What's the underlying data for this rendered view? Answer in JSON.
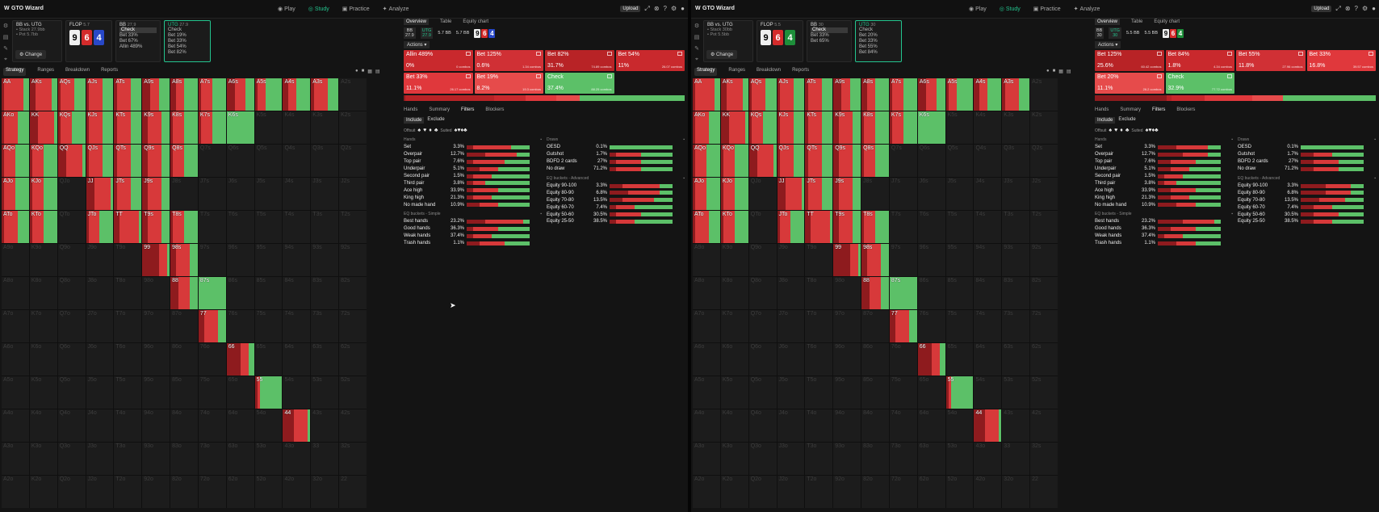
{
  "app": {
    "name": "GTO Wizard",
    "nav": [
      {
        "label": "Play"
      },
      {
        "label": "Study"
      },
      {
        "label": "Practice"
      },
      {
        "label": "Analyze"
      }
    ],
    "upload_label": "Upload",
    "accent": "#23c48e",
    "raise_color": "#d7393a",
    "check_color": "#5cc068"
  },
  "panes": [
    {
      "spot": {
        "hero": {
          "line1": "BB vs. UTG",
          "line2": "• Stack 27.9bb",
          "line3": "• Pot 5.7bb",
          "change": "Change"
        },
        "flop": {
          "label": "FLOP",
          "size": "5.7",
          "cards": [
            "9",
            "6",
            "4"
          ]
        },
        "bb": {
          "label": "BB",
          "size": "27.9",
          "actions": [
            "Check",
            "Bet 33%",
            "Bet 67%",
            "Allin 489%"
          ]
        },
        "utg": {
          "label": "UTG",
          "size": "27.9",
          "actions": [
            "Check",
            "Bet 19%",
            "Bet 33%",
            "Bet 54%",
            "Bet 82%"
          ]
        }
      },
      "subtabs": [
        "Strategy",
        "Ranges",
        "Breakdown",
        "Reports"
      ],
      "right": {
        "tabs": [
          "Overview",
          "Table",
          "Equity chart"
        ],
        "info": {
          "pos1": "BB",
          "stack1": "27.9",
          "pos2": "UTG",
          "stack2": "27.9",
          "pot": "5.7 BB",
          "pot_odds": "5.7 BB"
        },
        "actions_label": "Actions",
        "boxes": [
          {
            "title": "Allin 489%",
            "pct": "0%",
            "combos": "0 combos",
            "color": "#c9292d"
          },
          {
            "title": "Bet 125%",
            "pct": "0.6%",
            "combos": "1.34 combos",
            "color": "#d03035"
          },
          {
            "title": "Bet 82%",
            "pct": "31.7%",
            "combos": "74.89 combos",
            "color": "#b82326"
          },
          {
            "title": "Bet 54%",
            "pct": "11%",
            "combos": "26.07 combos",
            "color": "#c9292d"
          },
          {
            "title": "Bet 33%",
            "pct": "11.1%",
            "combos": "26.17 combos",
            "color": "#e0383c"
          },
          {
            "title": "Bet 19%",
            "pct": "8.2%",
            "combos": "19.3 combos",
            "color": "#e64b4b"
          },
          {
            "title": "Check",
            "pct": "37.4%",
            "combos": "88.25 combos",
            "color": "#5cc068"
          }
        ],
        "strategy_bar": [
          0.006,
          0.317,
          0.11,
          0.111,
          0.082,
          0.374
        ],
        "filter_tabs": [
          "Hands",
          "Summary",
          "Filters",
          "Blockers"
        ],
        "include": [
          "Include",
          "Exclude"
        ],
        "suit_labels": [
          "Offsuit",
          "Suited"
        ],
        "hands_title": "Hands",
        "hands": [
          {
            "name": "Set",
            "val": "3.3%",
            "mix": [
              0.1,
              0.6,
              0.3
            ]
          },
          {
            "name": "Overpair",
            "val": "12.7%",
            "mix": [
              0.3,
              0.5,
              0.2
            ]
          },
          {
            "name": "Top pair",
            "val": "7.6%",
            "mix": [
              0.1,
              0.5,
              0.4
            ]
          },
          {
            "name": "Underpair",
            "val": "5.1%",
            "mix": [
              0.2,
              0.3,
              0.5
            ]
          },
          {
            "name": "Second pair",
            "val": "1.5%",
            "mix": [
              0.1,
              0.3,
              0.6
            ]
          },
          {
            "name": "Third pair",
            "val": "3.8%",
            "mix": [
              0.1,
              0.2,
              0.7
            ]
          },
          {
            "name": "Ace high",
            "val": "33.9%",
            "mix": [
              0.1,
              0.4,
              0.5
            ]
          },
          {
            "name": "King high",
            "val": "21.3%",
            "mix": [
              0.1,
              0.3,
              0.6
            ]
          },
          {
            "name": "No made hand",
            "val": "10.9%",
            "mix": [
              0.2,
              0.3,
              0.5
            ]
          }
        ],
        "eq_simple_title": "EQ buckets - Simple",
        "eq_simple": [
          {
            "name": "Best hands",
            "val": "23.2%",
            "mix": [
              0.3,
              0.6,
              0.1
            ]
          },
          {
            "name": "Good hands",
            "val": "36.3%",
            "mix": [
              0.1,
              0.4,
              0.5
            ]
          },
          {
            "name": "Weak hands",
            "val": "37.4%",
            "mix": [
              0.1,
              0.3,
              0.6
            ]
          },
          {
            "name": "Trash hands",
            "val": "1.1%",
            "mix": [
              0.2,
              0.4,
              0.4
            ]
          }
        ],
        "draws_title": "Draws",
        "draws": [
          {
            "name": "OESD",
            "val": "0.1%",
            "mix": [
              0.0,
              0.0,
              1.0
            ]
          },
          {
            "name": "Gutshot",
            "val": "1.7%",
            "mix": [
              0.1,
              0.4,
              0.5
            ]
          },
          {
            "name": "BDFD 2 cards",
            "val": "27%",
            "mix": [
              0.1,
              0.4,
              0.5
            ]
          },
          {
            "name": "No draw",
            "val": "71.2%",
            "mix": [
              0.1,
              0.4,
              0.5
            ]
          }
        ],
        "eq_adv_title": "EQ buckets - Advanced",
        "eq_adv": [
          {
            "name": "Equity 90-100",
            "val": "3.3%",
            "mix": [
              0.2,
              0.6,
              0.2
            ]
          },
          {
            "name": "Equity 80-90",
            "val": "6.8%",
            "mix": [
              0.3,
              0.5,
              0.2
            ]
          },
          {
            "name": "Equity 70-80",
            "val": "13.5%",
            "mix": [
              0.2,
              0.5,
              0.3
            ]
          },
          {
            "name": "Equity 60-70",
            "val": "7.4%",
            "mix": [
              0.1,
              0.3,
              0.6
            ]
          },
          {
            "name": "Equity 50-60",
            "val": "30.5%",
            "mix": [
              0.1,
              0.4,
              0.5
            ]
          },
          {
            "name": "Equity 25-50",
            "val": "38.5%",
            "mix": [
              0.1,
              0.3,
              0.6
            ]
          }
        ]
      }
    },
    {
      "spot": {
        "hero": {
          "line1": "BB vs. UTG",
          "line2": "• Stack 30bb",
          "line3": "• Pot 5.5bb",
          "change": "Change"
        },
        "flop": {
          "label": "FLOP",
          "size": "5.5",
          "cards": [
            "9",
            "6",
            "4"
          ]
        },
        "bb": {
          "label": "BB",
          "size": "30",
          "actions": [
            "Check",
            "Bet 33%",
            "Bet 65%"
          ]
        },
        "utg": {
          "label": "UTG",
          "size": "30",
          "actions": [
            "Check",
            "Bet 20%",
            "Bet 33%",
            "Bet 55%",
            "Bet 84%"
          ]
        }
      },
      "subtabs": [
        "Strategy",
        "Ranges",
        "Breakdown",
        "Reports"
      ],
      "right": {
        "tabs": [
          "Overview",
          "Table",
          "Equity chart"
        ],
        "info": {
          "pos1": "BB",
          "stack1": "30",
          "pos2": "UTG",
          "stack2": "30",
          "pot": "5.5 BB",
          "pot_odds": "5.5 BB"
        },
        "actions_label": "Actions",
        "boxes": [
          {
            "title": "Bet 125%",
            "pct": "25.6%",
            "combos": "60.42 combos",
            "color": "#b82326"
          },
          {
            "title": "Bet 84%",
            "pct": "1.8%",
            "combos": "4.34 combos",
            "color": "#c9292d"
          },
          {
            "title": "Bet 55%",
            "pct": "11.8%",
            "combos": "27.96 combos",
            "color": "#d03035"
          },
          {
            "title": "Bet 33%",
            "pct": "16.8%",
            "combos": "39.57 combos",
            "color": "#e0383c"
          },
          {
            "title": "Bet 20%",
            "pct": "11.1%",
            "combos": "26.2 combos",
            "color": "#e64b4b"
          },
          {
            "title": "Check",
            "pct": "32.9%",
            "combos": "77.72 combos",
            "color": "#5cc068"
          }
        ],
        "strategy_bar": [
          0.256,
          0.018,
          0.118,
          0.168,
          0.111,
          0.329
        ],
        "filter_tabs": [
          "Hands",
          "Summary",
          "Filters",
          "Blockers"
        ],
        "include": [
          "Include",
          "Exclude"
        ],
        "suit_labels": [
          "Offsuit",
          "Suited"
        ],
        "hands_title": "Hands",
        "hands": [
          {
            "name": "Set",
            "val": "3.3%",
            "mix": [
              0.3,
              0.5,
              0.2
            ]
          },
          {
            "name": "Overpair",
            "val": "12.7%",
            "mix": [
              0.4,
              0.4,
              0.2
            ]
          },
          {
            "name": "Top pair",
            "val": "7.6%",
            "mix": [
              0.2,
              0.4,
              0.4
            ]
          },
          {
            "name": "Underpair",
            "val": "5.1%",
            "mix": [
              0.2,
              0.3,
              0.5
            ]
          },
          {
            "name": "Second pair",
            "val": "1.5%",
            "mix": [
              0.1,
              0.3,
              0.6
            ]
          },
          {
            "name": "Third pair",
            "val": "3.8%",
            "mix": [
              0.1,
              0.2,
              0.7
            ]
          },
          {
            "name": "Ace high",
            "val": "33.9%",
            "mix": [
              0.2,
              0.4,
              0.4
            ]
          },
          {
            "name": "King high",
            "val": "21.3%",
            "mix": [
              0.2,
              0.3,
              0.5
            ]
          },
          {
            "name": "No made hand",
            "val": "10.9%",
            "mix": [
              0.3,
              0.3,
              0.4
            ]
          }
        ],
        "eq_simple_title": "EQ buckets - Simple",
        "eq_simple": [
          {
            "name": "Best hands",
            "val": "23.2%",
            "mix": [
              0.4,
              0.5,
              0.1
            ]
          },
          {
            "name": "Good hands",
            "val": "36.3%",
            "mix": [
              0.2,
              0.4,
              0.4
            ]
          },
          {
            "name": "Weak hands",
            "val": "37.4%",
            "mix": [
              0.1,
              0.3,
              0.6
            ]
          },
          {
            "name": "Trash hands",
            "val": "1.1%",
            "mix": [
              0.3,
              0.3,
              0.4
            ]
          }
        ],
        "draws_title": "Draws",
        "draws": [
          {
            "name": "OESD",
            "val": "0.1%",
            "mix": [
              0.0,
              0.0,
              1.0
            ]
          },
          {
            "name": "Gutshot",
            "val": "1.7%",
            "mix": [
              0.2,
              0.3,
              0.5
            ]
          },
          {
            "name": "BDFD 2 cards",
            "val": "27%",
            "mix": [
              0.2,
              0.4,
              0.4
            ]
          },
          {
            "name": "No draw",
            "val": "71.2%",
            "mix": [
              0.2,
              0.4,
              0.4
            ]
          }
        ],
        "eq_adv_title": "EQ buckets - Advanced",
        "eq_adv": [
          {
            "name": "Equity 90-100",
            "val": "3.3%",
            "mix": [
              0.4,
              0.4,
              0.2
            ]
          },
          {
            "name": "Equity 80-90",
            "val": "6.8%",
            "mix": [
              0.4,
              0.4,
              0.2
            ]
          },
          {
            "name": "Equity 70-80",
            "val": "13.5%",
            "mix": [
              0.3,
              0.4,
              0.3
            ]
          },
          {
            "name": "Equity 60-70",
            "val": "7.4%",
            "mix": [
              0.2,
              0.3,
              0.5
            ]
          },
          {
            "name": "Equity 50-60",
            "val": "30.5%",
            "mix": [
              0.2,
              0.4,
              0.4
            ]
          },
          {
            "name": "Equity 25-50",
            "val": "38.5%",
            "mix": [
              0.2,
              0.3,
              0.5
            ]
          }
        ]
      }
    }
  ],
  "range_grid": {
    "ranks": [
      "A",
      "K",
      "Q",
      "J",
      "T",
      "9",
      "8",
      "7",
      "6",
      "5",
      "4",
      "3",
      "2"
    ],
    "active_hands": {
      "AA": [
        0.1,
        0.7,
        0.2
      ],
      "AKs": [
        0.2,
        0.6,
        0.2
      ],
      "AQs": [
        0.1,
        0.5,
        0.4
      ],
      "AJs": [
        0.1,
        0.5,
        0.4
      ],
      "ATs": [
        0.1,
        0.5,
        0.4
      ],
      "A9s": [
        0.3,
        0.3,
        0.4
      ],
      "A8s": [
        0.2,
        0.3,
        0.5
      ],
      "A7s": [
        0.1,
        0.4,
        0.5
      ],
      "A6s": [
        0.3,
        0.4,
        0.3
      ],
      "A5s": [
        0.1,
        0.3,
        0.6
      ],
      "A4s": [
        0.2,
        0.3,
        0.5
      ],
      "A3s": [
        0.1,
        0.5,
        0.4
      ],
      "AKo": [
        0.1,
        0.5,
        0.4
      ],
      "KK": [
        0.3,
        0.6,
        0.1
      ],
      "KQs": [
        0.1,
        0.4,
        0.5
      ],
      "KJs": [
        0.1,
        0.5,
        0.4
      ],
      "KTs": [
        0.1,
        0.5,
        0.4
      ],
      "K9s": [
        0.2,
        0.5,
        0.3
      ],
      "K8s": [
        0.1,
        0.4,
        0.5
      ],
      "K7s": [
        0.1,
        0.4,
        0.5
      ],
      "K6s": [
        0.0,
        0.0,
        1.0
      ],
      "AQo": [
        0.1,
        0.4,
        0.5
      ],
      "KQo": [
        0.1,
        0.4,
        0.5
      ],
      "QQ": [
        0.3,
        0.6,
        0.1
      ],
      "QJs": [
        0.1,
        0.5,
        0.4
      ],
      "QTs": [
        0.1,
        0.5,
        0.4
      ],
      "Q9s": [
        0.2,
        0.5,
        0.3
      ],
      "Q8s": [
        0.1,
        0.4,
        0.5
      ],
      "AJo": [
        0.1,
        0.4,
        0.5
      ],
      "KJo": [
        0.1,
        0.4,
        0.5
      ],
      "JJ": [
        0.3,
        0.6,
        0.1
      ],
      "JTs": [
        0.1,
        0.5,
        0.4
      ],
      "J9s": [
        0.2,
        0.5,
        0.3
      ],
      "ATo": [
        0.1,
        0.5,
        0.4
      ],
      "KTo": [
        0.1,
        0.4,
        0.5
      ],
      "JTo": [
        0.1,
        0.4,
        0.5
      ],
      "TT": [
        0.2,
        0.7,
        0.1
      ],
      "T9s": [
        0.2,
        0.5,
        0.3
      ],
      "T8s": [
        0.1,
        0.4,
        0.5
      ],
      "99": [
        0.6,
        0.3,
        0.1
      ],
      "98s": [
        0.2,
        0.5,
        0.3
      ],
      "88": [
        0.3,
        0.4,
        0.3
      ],
      "87s": [
        0.0,
        0.0,
        1.0
      ],
      "77": [
        0.2,
        0.5,
        0.3
      ],
      "66": [
        0.5,
        0.3,
        0.2
      ],
      "55": [
        0.1,
        0.1,
        0.8
      ],
      "44": [
        0.4,
        0.5,
        0.1
      ]
    }
  },
  "cursor": "pointer-cursor"
}
